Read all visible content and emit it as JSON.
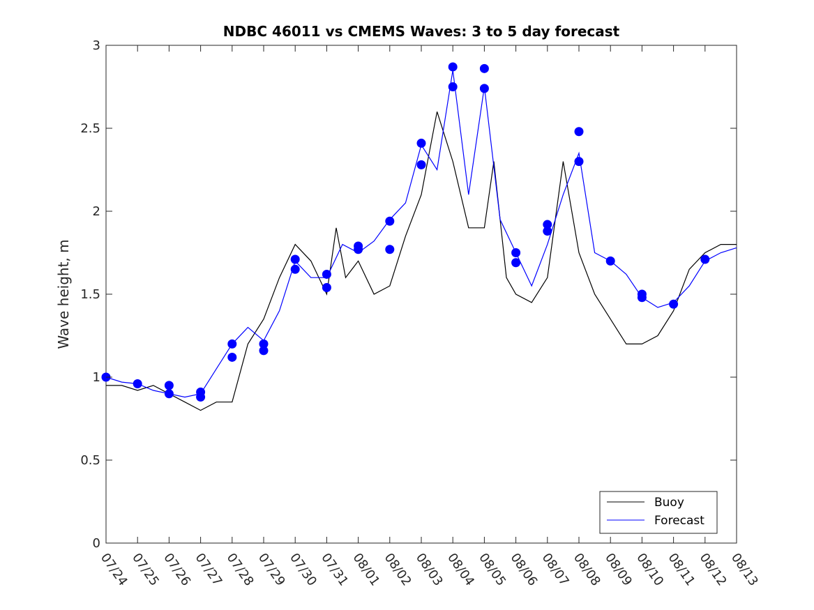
{
  "chart_data": {
    "type": "line",
    "title": "NDBC 46011 vs CMEMS Waves: 3 to 5 day forecast",
    "xlabel": "",
    "ylabel": "Wave height, m",
    "x_ticks": [
      "07/24",
      "07/25",
      "07/26",
      "07/27",
      "07/28",
      "07/29",
      "07/30",
      "07/31",
      "08/01",
      "08/02",
      "08/03",
      "08/04",
      "08/05",
      "08/06",
      "08/07",
      "08/08",
      "08/09",
      "08/10",
      "08/11",
      "08/12",
      "08/13"
    ],
    "x_range_days": [
      0,
      20
    ],
    "ylim": [
      0,
      3
    ],
    "y_ticks": [
      "0",
      "0.5",
      "1",
      "1.5",
      "2",
      "2.5",
      "3"
    ],
    "grid": false,
    "legend": {
      "position": "bottom-right",
      "entries": [
        {
          "name": "Buoy",
          "color": "#000000"
        },
        {
          "name": "Forecast",
          "color": "#0000ff"
        }
      ]
    },
    "series": [
      {
        "name": "Buoy",
        "color": "#000000",
        "x": [
          0,
          0.5,
          1,
          1.5,
          2,
          2.5,
          3,
          3.5,
          4,
          4.5,
          5,
          5.5,
          6,
          6.5,
          7,
          7.3,
          7.6,
          8,
          8.5,
          9,
          9.5,
          10,
          10.5,
          11,
          11.5,
          12,
          12.3,
          12.7,
          13,
          13.5,
          14,
          14.5,
          15,
          15.5,
          16,
          16.5,
          17,
          17.5,
          18,
          18.5,
          19,
          19.5,
          20
        ],
        "y": [
          0.95,
          0.95,
          0.92,
          0.95,
          0.9,
          0.85,
          0.8,
          0.85,
          0.85,
          1.2,
          1.35,
          1.6,
          1.8,
          1.7,
          1.5,
          1.9,
          1.6,
          1.7,
          1.5,
          1.55,
          1.85,
          2.1,
          2.6,
          2.3,
          1.9,
          1.9,
          2.3,
          1.6,
          1.5,
          1.45,
          1.6,
          2.3,
          1.75,
          1.5,
          1.35,
          1.2,
          1.2,
          1.25,
          1.4,
          1.65,
          1.75,
          1.8,
          1.8
        ]
      },
      {
        "name": "Forecast",
        "color": "#0000ff",
        "x": [
          0,
          0.5,
          1,
          1.5,
          2,
          2.5,
          3,
          3.5,
          4,
          4.5,
          5,
          5.5,
          6,
          6.5,
          7,
          7.5,
          8,
          8.5,
          9,
          9.5,
          10,
          10.5,
          11,
          11.5,
          12,
          12.5,
          13,
          13.5,
          14,
          14.5,
          15,
          15.5,
          16,
          16.5,
          17,
          17.5,
          18,
          18.5,
          19,
          19.5,
          20
        ],
        "y": [
          1.0,
          0.97,
          0.96,
          0.92,
          0.9,
          0.88,
          0.9,
          1.05,
          1.2,
          1.3,
          1.22,
          1.4,
          1.7,
          1.6,
          1.6,
          1.8,
          1.75,
          1.82,
          1.95,
          2.05,
          2.4,
          2.25,
          2.85,
          2.1,
          2.75,
          1.95,
          1.75,
          1.55,
          1.8,
          2.1,
          2.35,
          1.75,
          1.7,
          1.62,
          1.48,
          1.42,
          1.45,
          1.55,
          1.7,
          1.75,
          1.78
        ]
      }
    ],
    "markers": {
      "color": "#0000ff",
      "x": [
        0,
        1,
        2,
        2,
        3,
        3,
        4,
        4,
        5,
        5,
        6,
        6,
        7,
        7,
        8,
        8,
        9,
        9,
        10,
        10,
        11,
        11,
        12,
        12,
        13,
        13,
        14,
        14,
        15,
        15,
        16,
        17,
        17,
        18,
        19
      ],
      "y": [
        1.0,
        0.96,
        0.95,
        0.9,
        0.91,
        0.88,
        1.2,
        1.12,
        1.2,
        1.16,
        1.71,
        1.65,
        1.62,
        1.54,
        1.79,
        1.77,
        1.94,
        1.77,
        2.41,
        2.28,
        2.87,
        2.75,
        2.86,
        2.74,
        1.75,
        1.69,
        1.92,
        1.88,
        2.48,
        2.3,
        1.7,
        1.5,
        1.48,
        1.44,
        1.71
      ]
    }
  }
}
